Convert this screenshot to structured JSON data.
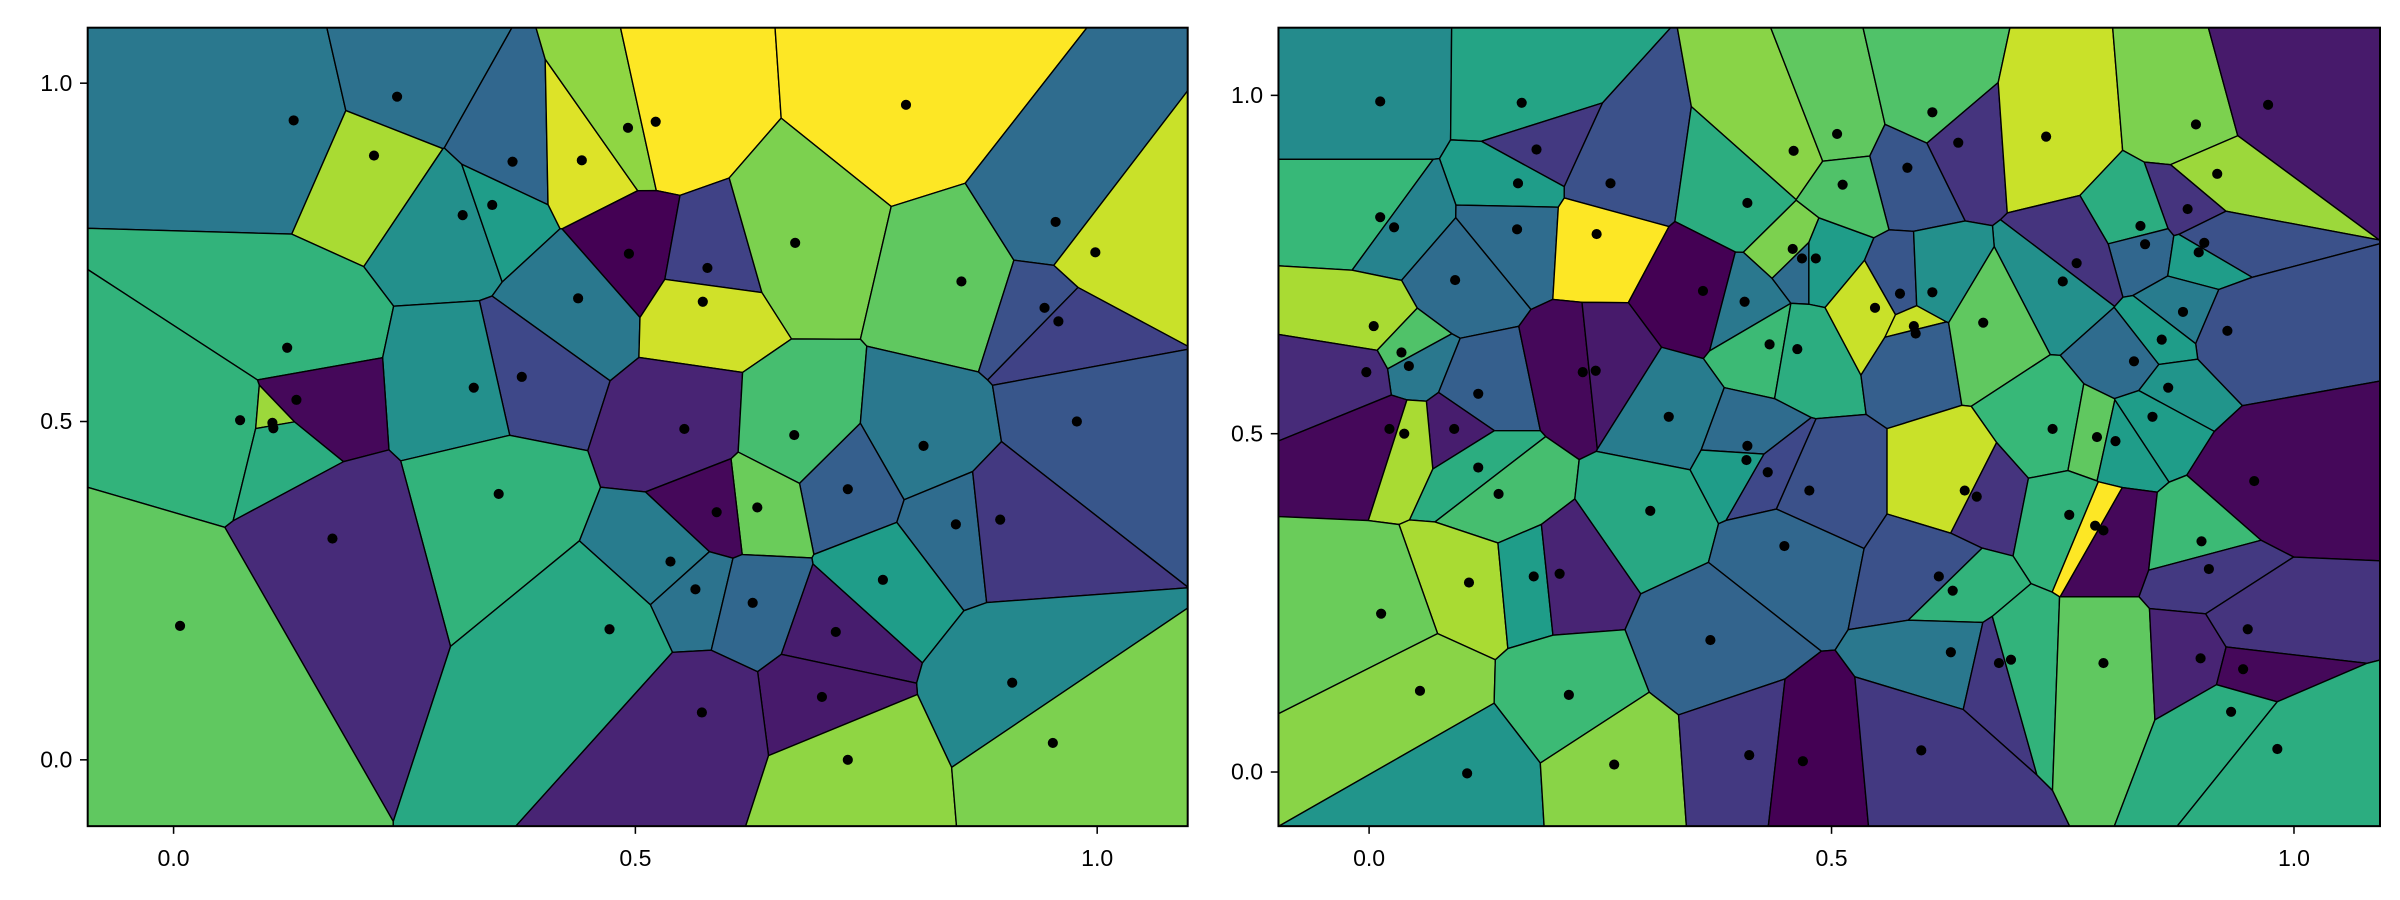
{
  "chart_data": [
    {
      "type": "voronoi",
      "colormap": "viridis",
      "xlim": [
        -0.093,
        1.098
      ],
      "ylim": [
        -0.098,
        1.082
      ],
      "xticks": [
        "0.0",
        "0.5",
        "1.0"
      ],
      "yticks": [
        "0.0",
        "0.5",
        "1.0"
      ],
      "points": [
        [
          0.13,
          0.945,
          0.4
        ],
        [
          0.242,
          0.98,
          0.37
        ],
        [
          0.217,
          0.893,
          0.87
        ],
        [
          0.367,
          0.884,
          0.33
        ],
        [
          0.442,
          0.886,
          0.95
        ],
        [
          0.492,
          0.934,
          0.83
        ],
        [
          0.522,
          0.943,
          1.0
        ],
        [
          0.793,
          0.968,
          1.0
        ],
        [
          0.313,
          0.805,
          0.5
        ],
        [
          0.345,
          0.82,
          0.55
        ],
        [
          0.493,
          0.748,
          0.0
        ],
        [
          0.578,
          0.727,
          0.2
        ],
        [
          0.673,
          0.764,
          0.8
        ],
        [
          0.853,
          0.707,
          0.75
        ],
        [
          0.955,
          0.795,
          0.35
        ],
        [
          0.998,
          0.75,
          0.92
        ],
        [
          0.438,
          0.682,
          0.4
        ],
        [
          0.573,
          0.677,
          0.93
        ],
        [
          0.943,
          0.668,
          0.25
        ],
        [
          0.958,
          0.648,
          0.2
        ],
        [
          0.123,
          0.609,
          0.65
        ],
        [
          0.377,
          0.566,
          0.22
        ],
        [
          0.325,
          0.55,
          0.5
        ],
        [
          0.133,
          0.532,
          0.02
        ],
        [
          0.072,
          0.502,
          0.65
        ],
        [
          0.107,
          0.498,
          0.85
        ],
        [
          0.108,
          0.49,
          0.62
        ],
        [
          0.553,
          0.489,
          0.1
        ],
        [
          0.672,
          0.48,
          0.7
        ],
        [
          0.812,
          0.464,
          0.4
        ],
        [
          0.978,
          0.5,
          0.27
        ],
        [
          0.352,
          0.393,
          0.65
        ],
        [
          0.73,
          0.4,
          0.3
        ],
        [
          0.632,
          0.373,
          0.77
        ],
        [
          0.588,
          0.366,
          0.02
        ],
        [
          0.172,
          0.327,
          0.12
        ],
        [
          0.847,
          0.348,
          0.35
        ],
        [
          0.895,
          0.355,
          0.17
        ],
        [
          0.538,
          0.293,
          0.42
        ],
        [
          0.768,
          0.266,
          0.55
        ],
        [
          0.565,
          0.252,
          0.38
        ],
        [
          0.627,
          0.232,
          0.33
        ],
        [
          0.007,
          0.198,
          0.75
        ],
        [
          0.472,
          0.193,
          0.6
        ],
        [
          0.717,
          0.189,
          0.08
        ],
        [
          0.908,
          0.114,
          0.47
        ],
        [
          0.702,
          0.093,
          0.07
        ],
        [
          0.572,
          0.07,
          0.1
        ],
        [
          0.73,
          0.0,
          0.83
        ],
        [
          0.952,
          0.025,
          0.8
        ]
      ]
    },
    {
      "type": "voronoi",
      "colormap": "viridis",
      "xlim": [
        -0.098,
        1.093
      ],
      "ylim": [
        -0.08,
        1.1
      ],
      "xticks": [
        "0.0",
        "0.5",
        "1.0"
      ],
      "yticks": [
        "0.0",
        "0.5",
        "1.0"
      ],
      "points": [
        [
          0.012,
          0.991,
          0.48
        ],
        [
          0.165,
          0.989,
          0.58
        ],
        [
          0.181,
          0.92,
          0.17
        ],
        [
          0.161,
          0.87,
          0.55
        ],
        [
          0.261,
          0.87,
          0.25
        ],
        [
          0.459,
          0.918,
          0.82
        ],
        [
          0.409,
          0.841,
          0.62
        ],
        [
          0.012,
          0.82,
          0.67
        ],
        [
          0.027,
          0.805,
          0.45
        ],
        [
          0.16,
          0.802,
          0.35
        ],
        [
          0.246,
          0.795,
          1.0
        ],
        [
          0.093,
          0.727,
          0.35
        ],
        [
          0.361,
          0.711,
          0.0
        ],
        [
          0.458,
          0.773,
          0.8
        ],
        [
          0.468,
          0.759,
          0.35
        ],
        [
          0.483,
          0.759,
          0.55
        ],
        [
          0.406,
          0.695,
          0.4
        ],
        [
          0.005,
          0.659,
          0.87
        ],
        [
          0.035,
          0.62,
          0.72
        ],
        [
          0.043,
          0.6,
          0.4
        ],
        [
          -0.003,
          0.591,
          0.12
        ],
        [
          0.118,
          0.559,
          0.3
        ],
        [
          0.231,
          0.591,
          0.02
        ],
        [
          0.245,
          0.593,
          0.07
        ],
        [
          0.433,
          0.632,
          0.68
        ],
        [
          0.463,
          0.625,
          0.62
        ],
        [
          0.324,
          0.525,
          0.42
        ],
        [
          0.022,
          0.507,
          0.02
        ],
        [
          0.092,
          0.507,
          0.08
        ],
        [
          0.409,
          0.482,
          0.35
        ],
        [
          0.506,
          0.943,
          0.75
        ],
        [
          0.609,
          0.975,
          0.72
        ],
        [
          0.637,
          0.93,
          0.15
        ],
        [
          0.582,
          0.893,
          0.27
        ],
        [
          0.512,
          0.868,
          0.72
        ],
        [
          0.732,
          0.939,
          0.92
        ],
        [
          0.894,
          0.957,
          0.8
        ],
        [
          0.972,
          0.986,
          0.07
        ],
        [
          0.917,
          0.884,
          0.85
        ],
        [
          0.885,
          0.832,
          0.15
        ],
        [
          0.834,
          0.807,
          0.62
        ],
        [
          0.839,
          0.78,
          0.33
        ],
        [
          0.903,
          0.782,
          0.25
        ],
        [
          0.897,
          0.768,
          0.55
        ],
        [
          0.765,
          0.752,
          0.15
        ],
        [
          0.75,
          0.725,
          0.5
        ],
        [
          0.574,
          0.707,
          0.27
        ],
        [
          0.609,
          0.709,
          0.5
        ],
        [
          0.547,
          0.686,
          0.92
        ],
        [
          0.589,
          0.659,
          0.92
        ],
        [
          0.591,
          0.648,
          0.3
        ],
        [
          0.664,
          0.664,
          0.75
        ],
        [
          0.88,
          0.68,
          0.42
        ],
        [
          0.928,
          0.652,
          0.25
        ],
        [
          0.857,
          0.639,
          0.55
        ],
        [
          0.827,
          0.607,
          0.35
        ],
        [
          0.864,
          0.568,
          0.52
        ],
        [
          0.847,
          0.525,
          0.55
        ],
        [
          0.739,
          0.507,
          0.67
        ],
        [
          0.038,
          0.5,
          0.87
        ],
        [
          0.118,
          0.45,
          0.62
        ],
        [
          0.14,
          0.411,
          0.7
        ],
        [
          0.304,
          0.386,
          0.6
        ],
        [
          0.408,
          0.461,
          0.55
        ],
        [
          0.431,
          0.443,
          0.22
        ],
        [
          0.476,
          0.416,
          0.25
        ],
        [
          0.449,
          0.334,
          0.33
        ],
        [
          0.108,
          0.28,
          0.87
        ],
        [
          0.013,
          0.234,
          0.77
        ],
        [
          0.178,
          0.289,
          0.55
        ],
        [
          0.206,
          0.293,
          0.1
        ],
        [
          0.369,
          0.195,
          0.32
        ],
        [
          0.055,
          0.12,
          0.82
        ],
        [
          0.216,
          0.114,
          0.68
        ],
        [
          0.106,
          -0.002,
          0.52
        ],
        [
          0.265,
          0.011,
          0.82
        ],
        [
          0.411,
          0.025,
          0.17
        ],
        [
          0.469,
          0.016,
          0.0
        ],
        [
          0.787,
          0.495,
          0.75
        ],
        [
          0.807,
          0.489,
          0.55
        ],
        [
          0.957,
          0.43,
          0.02
        ],
        [
          0.644,
          0.416,
          0.92
        ],
        [
          0.657,
          0.407,
          0.15
        ],
        [
          0.757,
          0.38,
          0.65
        ],
        [
          0.785,
          0.364,
          1.0
        ],
        [
          0.794,
          0.357,
          0.02
        ],
        [
          0.9,
          0.341,
          0.68
        ],
        [
          0.908,
          0.3,
          0.17
        ],
        [
          0.616,
          0.289,
          0.25
        ],
        [
          0.631,
          0.268,
          0.65
        ],
        [
          0.629,
          0.177,
          0.4
        ],
        [
          0.681,
          0.161,
          0.17
        ],
        [
          0.694,
          0.166,
          0.65
        ],
        [
          0.794,
          0.161,
          0.75
        ],
        [
          0.899,
          0.168,
          0.1
        ],
        [
          0.95,
          0.211,
          0.15
        ],
        [
          0.945,
          0.152,
          0.02
        ],
        [
          0.932,
          0.089,
          0.62
        ],
        [
          0.982,
          0.034,
          0.62
        ],
        [
          0.597,
          0.032,
          0.17
        ]
      ]
    }
  ]
}
